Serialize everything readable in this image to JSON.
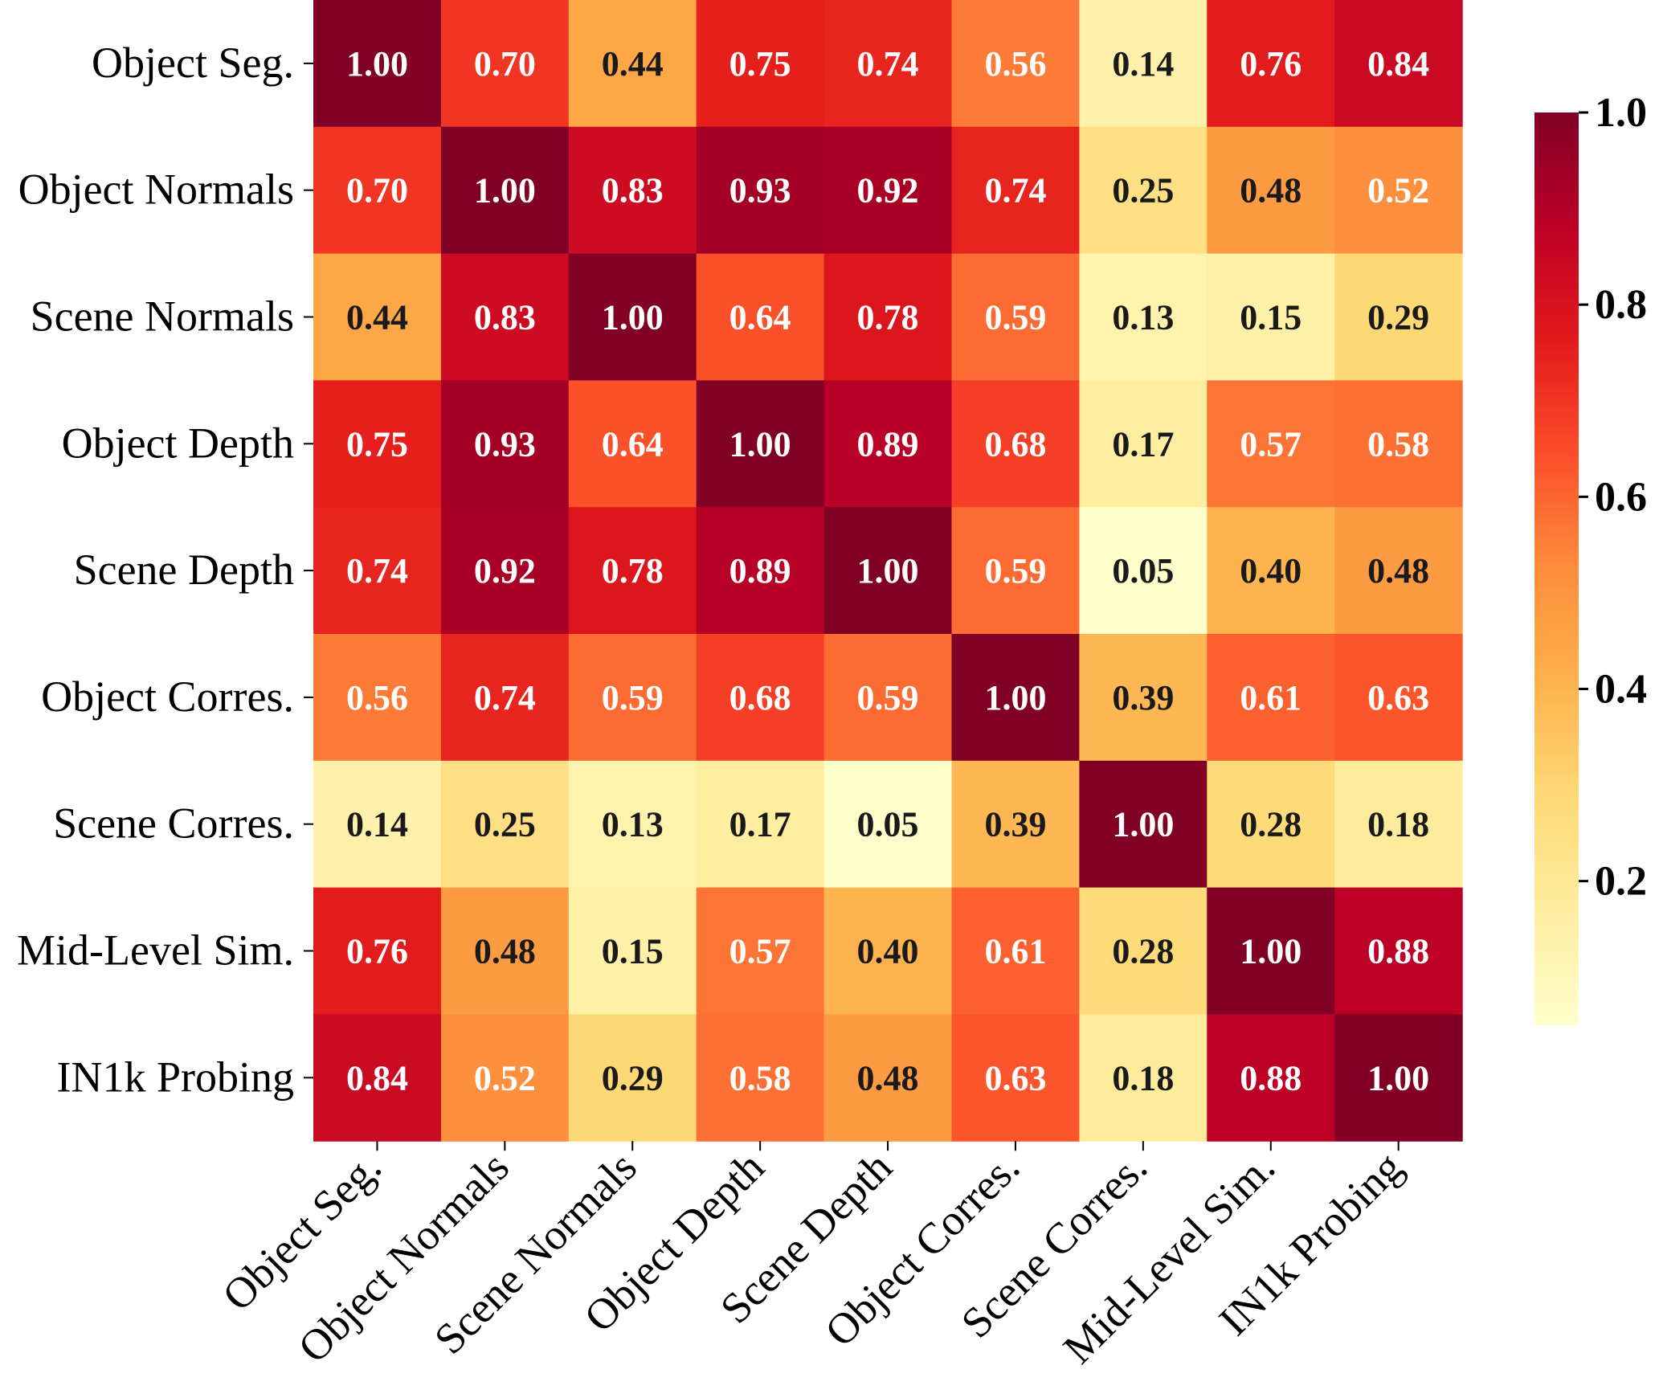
{
  "chart_data": {
    "type": "heatmap",
    "title": "",
    "xlabel": "",
    "ylabel": "",
    "rows": [
      "Object Seg.",
      "Object Normals",
      "Scene Normals",
      "Object Depth",
      "Scene Depth",
      "Object Corres.",
      "Scene Corres.",
      "Mid-Level Sim.",
      "IN1k Probing"
    ],
    "columns": [
      "Object Seg.",
      "Object Normals",
      "Scene Normals",
      "Object Depth",
      "Scene Depth",
      "Object Corres.",
      "Scene Corres.",
      "Mid-Level Sim.",
      "IN1k Probing"
    ],
    "values": [
      [
        1.0,
        0.7,
        0.44,
        0.75,
        0.74,
        0.56,
        0.14,
        0.76,
        0.84
      ],
      [
        0.7,
        1.0,
        0.83,
        0.93,
        0.92,
        0.74,
        0.25,
        0.48,
        0.52
      ],
      [
        0.44,
        0.83,
        1.0,
        0.64,
        0.78,
        0.59,
        0.13,
        0.15,
        0.29
      ],
      [
        0.75,
        0.93,
        0.64,
        1.0,
        0.89,
        0.68,
        0.17,
        0.57,
        0.58
      ],
      [
        0.74,
        0.92,
        0.78,
        0.89,
        1.0,
        0.59,
        0.05,
        0.4,
        0.48
      ],
      [
        0.56,
        0.74,
        0.59,
        0.68,
        0.59,
        1.0,
        0.39,
        0.61,
        0.63
      ],
      [
        0.14,
        0.25,
        0.13,
        0.17,
        0.05,
        0.39,
        1.0,
        0.28,
        0.18
      ],
      [
        0.76,
        0.48,
        0.15,
        0.57,
        0.4,
        0.61,
        0.28,
        1.0,
        0.88
      ],
      [
        0.84,
        0.52,
        0.29,
        0.58,
        0.48,
        0.63,
        0.18,
        0.88,
        1.0
      ]
    ],
    "value_format_decimals": 2,
    "colorbar": {
      "colormap": "YlOrRd",
      "range": [
        0.05,
        1.0
      ],
      "ticks": [
        0.2,
        0.4,
        0.6,
        0.8,
        1.0
      ],
      "tick_labels": [
        "0.2",
        "0.4",
        "0.6",
        "0.8",
        "1.0"
      ]
    },
    "colormap_stops": [
      "#ffffcc",
      "#ffeda0",
      "#fed976",
      "#feb24c",
      "#fd8d3c",
      "#fc4e2a",
      "#e31a1c",
      "#bd0026",
      "#800026"
    ],
    "text_colors": {
      "dark": "#1a1a1a",
      "light": "#ffffff"
    },
    "grid": false
  }
}
